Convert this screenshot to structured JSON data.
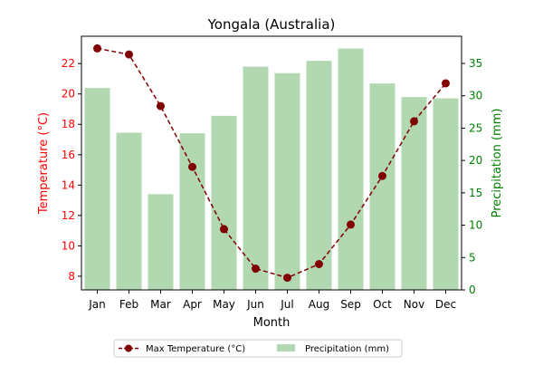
{
  "chart_data": {
    "type": "bar+line",
    "title": "Yongala (Australia)",
    "xlabel": "Month",
    "categories": [
      "Jan",
      "Feb",
      "Mar",
      "Apr",
      "May",
      "Jun",
      "Jul",
      "Aug",
      "Sep",
      "Oct",
      "Nov",
      "Dec"
    ],
    "left_axis": {
      "label": "Temperature (°C)",
      "ylim": [
        7.1,
        23.8
      ],
      "ticks": [
        8,
        10,
        12,
        14,
        16,
        18,
        20,
        22
      ],
      "color": "#ff0000"
    },
    "right_axis": {
      "label": "Precipitation (mm)",
      "ylim": [
        0,
        39.2
      ],
      "ticks": [
        0,
        5,
        10,
        15,
        20,
        25,
        30,
        35
      ],
      "color": "#008000"
    },
    "series": [
      {
        "name": "Max Temperature (°C)",
        "kind": "line",
        "axis": "left",
        "color": "#800000",
        "line_style": "dashed",
        "marker": "circle",
        "values": [
          23.0,
          22.6,
          19.2,
          15.2,
          11.1,
          8.5,
          7.9,
          8.8,
          11.4,
          14.6,
          18.2,
          20.7
        ]
      },
      {
        "name": "Precipitation (mm)",
        "kind": "bar",
        "axis": "right",
        "color": "#b2d8b2",
        "values": [
          31.2,
          24.3,
          14.8,
          24.2,
          26.9,
          34.5,
          33.5,
          35.4,
          37.3,
          31.9,
          29.8,
          29.6
        ]
      }
    ],
    "legend": {
      "placement": "bottom-center"
    }
  }
}
